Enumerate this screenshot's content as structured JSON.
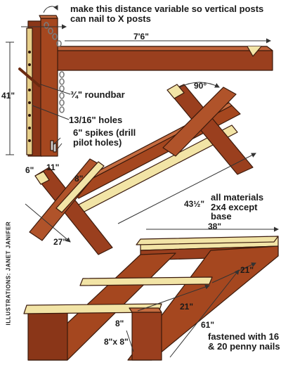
{
  "notes": {
    "variable_distance": "make this distance variable so vertical posts can nail to X posts",
    "roundbar": "¾\" roundbar",
    "holes": "13/16\" holes",
    "spikes": "6\" spikes (drill pilot holes)",
    "materials": "all materials 2x4 except base",
    "fastened": "fastened with 16 & 20 penny nails"
  },
  "dimensions": {
    "beam_length": "7'6\"",
    "post_height": "41\"",
    "post_width": "6\"",
    "angle": "90°",
    "brace_a": "8\"",
    "brace_b": "11\"",
    "x_width": "27\"",
    "long_brace": "43½\"",
    "base_width": "38\"",
    "base_cross_a": "21\"",
    "base_cross_b": "21\"",
    "base_length": "61\"",
    "base_small": "8\"",
    "base_timber": "8\"x 8\""
  },
  "credit": "ILLUSTRATIONS: JANET JANIFER",
  "colors": {
    "wood_dark": "#9a3f1e",
    "wood_light": "#f2e4a6",
    "outline": "#3a1a0c",
    "chain": "#7a7a7a"
  }
}
